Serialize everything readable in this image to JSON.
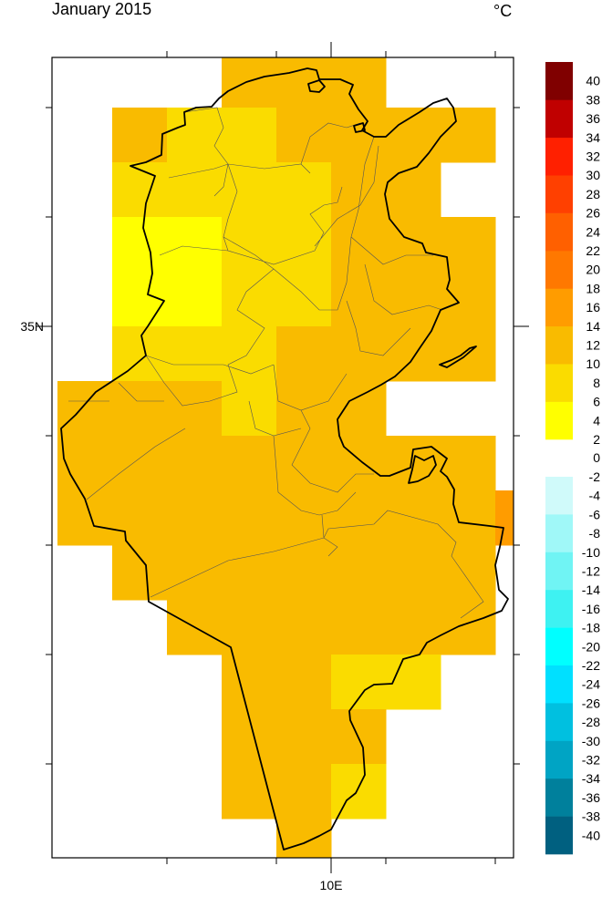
{
  "title": "January 2015",
  "units": "°C",
  "axes": {
    "lat_label": "35N",
    "lon_label": "10E"
  },
  "chart_data": {
    "type": "heatmap",
    "title": "January 2015",
    "units": "°C",
    "grid": {
      "lon_start": 7.5,
      "lat_start": 37.5,
      "cell_deg": 0.5,
      "note_values": "bin midpoints in °C",
      "rows": [
        [
          null,
          null,
          null,
          12,
          12,
          12,
          null,
          null,
          null
        ],
        [
          null,
          12,
          8,
          8,
          12,
          12,
          12,
          12,
          null
        ],
        [
          null,
          8,
          8,
          8,
          8,
          12,
          12,
          null,
          null
        ],
        [
          null,
          4,
          4,
          8,
          8,
          12,
          12,
          12,
          null
        ],
        [
          null,
          4,
          4,
          8,
          8,
          12,
          12,
          12,
          null
        ],
        [
          null,
          8,
          8,
          8,
          12,
          12,
          12,
          12,
          null
        ],
        [
          12,
          12,
          12,
          8,
          12,
          12,
          null,
          null,
          null
        ],
        [
          12,
          12,
          12,
          12,
          12,
          12,
          12,
          12,
          null
        ],
        [
          12,
          12,
          12,
          12,
          12,
          12,
          12,
          12,
          16
        ],
        [
          null,
          12,
          12,
          12,
          12,
          12,
          12,
          12,
          null
        ],
        [
          null,
          null,
          12,
          12,
          12,
          12,
          12,
          12,
          null
        ],
        [
          null,
          null,
          null,
          12,
          12,
          8,
          8,
          null,
          null
        ],
        [
          null,
          null,
          null,
          12,
          12,
          12,
          null,
          null,
          null
        ],
        [
          null,
          null,
          null,
          12,
          12,
          8,
          null,
          null,
          null
        ],
        [
          null,
          null,
          null,
          null,
          12,
          null,
          null,
          null,
          null
        ]
      ]
    },
    "colorbar": {
      "positive": {
        "bounds": [
          2,
          6,
          10,
          14,
          18,
          22,
          26,
          30,
          34,
          38,
          42
        ],
        "colors": [
          "#ffff00",
          "#fadc00",
          "#f9bb00",
          "#ff9c00",
          "#ff7800",
          "#ff6000",
          "#ff4000",
          "#ff2000",
          "#c00000",
          "#800000"
        ],
        "labels": [
          "2",
          "4",
          "6",
          "8",
          "10",
          "12",
          "14",
          "16",
          "18",
          "20",
          "22",
          "24",
          "26",
          "28",
          "30",
          "32",
          "34",
          "36",
          "38",
          "40"
        ]
      },
      "zero_label": "0",
      "negative": {
        "bounds": [
          -2,
          -6,
          -10,
          -14,
          -18,
          -22,
          -26,
          -30,
          -34,
          -38,
          -42
        ],
        "colors": [
          "#d0fafa",
          "#a0f8f8",
          "#70f4f4",
          "#3ef2f2",
          "#00ffff",
          "#00e0ff",
          "#00c0e0",
          "#00a4c4",
          "#00809c",
          "#006080"
        ],
        "labels": [
          "-2",
          "-4",
          "-6",
          "-8",
          "-10",
          "-12",
          "-14",
          "-16",
          "-18",
          "-20",
          "-22",
          "-24",
          "-26",
          "-28",
          "-30",
          "-32",
          "-34",
          "-36",
          "-38",
          "-40"
        ]
      }
    }
  }
}
